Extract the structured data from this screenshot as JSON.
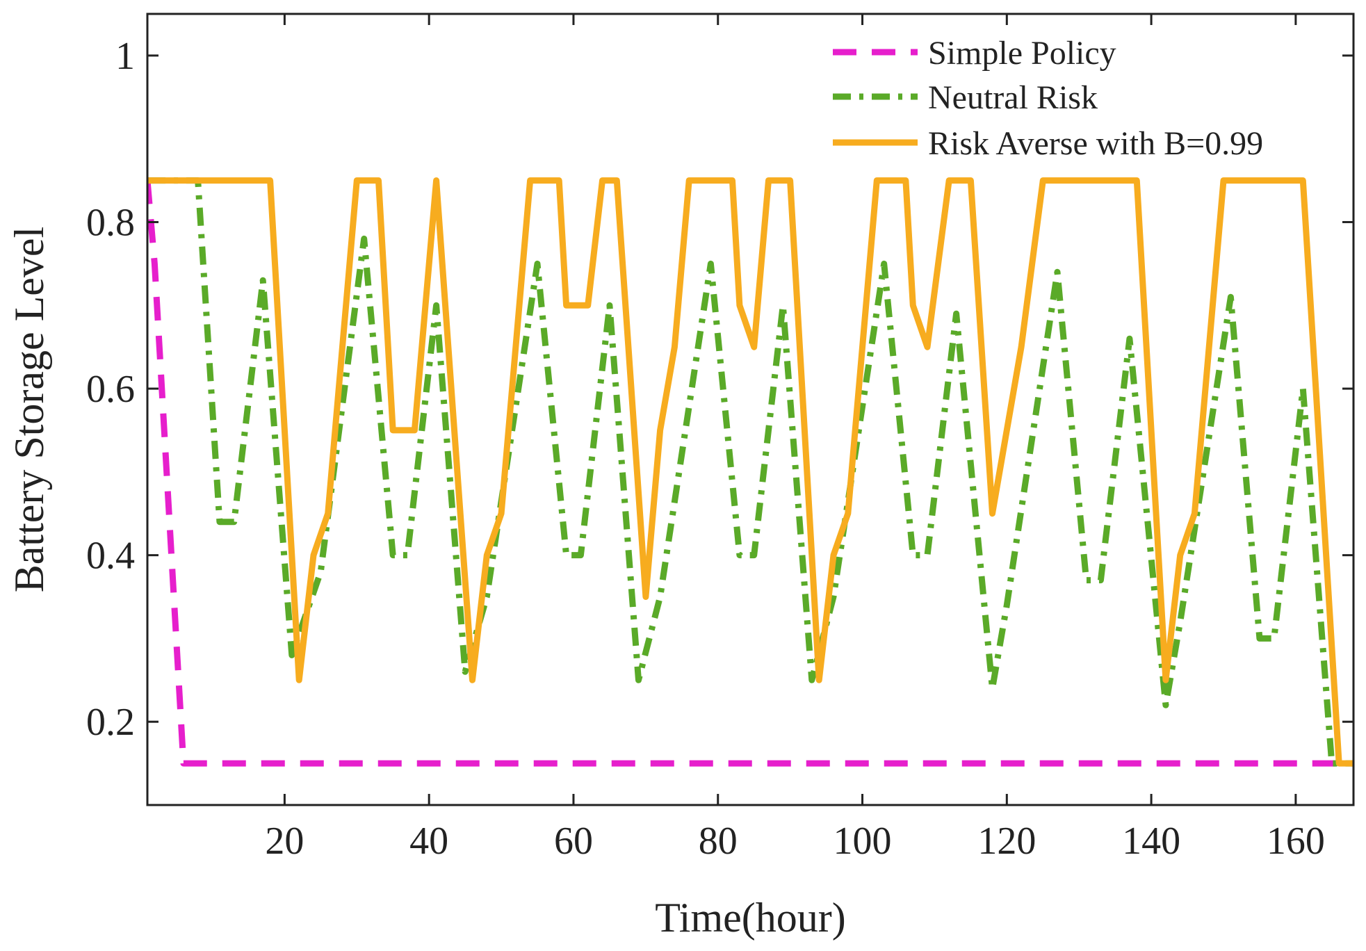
{
  "chart_data": {
    "type": "line",
    "title": "",
    "xlabel": "Time(hour)",
    "ylabel": "Battery Storage Level",
    "xlim": [
      1,
      168
    ],
    "ylim": [
      0.1,
      1.05
    ],
    "xticks": [
      20,
      40,
      60,
      80,
      100,
      120,
      140,
      160
    ],
    "yticks": [
      0.2,
      0.4,
      0.6,
      0.8,
      1
    ],
    "xtick_labels": [
      "20",
      "40",
      "60",
      "80",
      "100",
      "120",
      "140",
      "160"
    ],
    "ytick_labels": [
      "0.2",
      "0.4",
      "0.6",
      "0.8",
      "1"
    ],
    "grid": false,
    "legend_position": "top-right",
    "series": [
      {
        "name": "Simple Policy",
        "color": "#e61fcc",
        "style": "dashed",
        "points": [
          [
            1,
            0.85
          ],
          [
            2,
            0.75
          ],
          [
            6,
            0.15
          ],
          [
            168,
            0.15
          ]
        ]
      },
      {
        "name": "Neutral Risk",
        "color": "#5aaa28",
        "style": "dashdot",
        "points": [
          [
            1,
            0.85
          ],
          [
            8,
            0.85
          ],
          [
            11,
            0.44
          ],
          [
            13,
            0.44
          ],
          [
            17,
            0.73
          ],
          [
            21,
            0.28
          ],
          [
            25,
            0.38
          ],
          [
            31,
            0.78
          ],
          [
            35,
            0.4
          ],
          [
            37,
            0.4
          ],
          [
            41,
            0.7
          ],
          [
            45,
            0.26
          ],
          [
            48,
            0.35
          ],
          [
            55,
            0.75
          ],
          [
            59,
            0.4
          ],
          [
            61,
            0.4
          ],
          [
            65,
            0.7
          ],
          [
            69,
            0.25
          ],
          [
            72,
            0.35
          ],
          [
            79,
            0.75
          ],
          [
            83,
            0.4
          ],
          [
            85,
            0.4
          ],
          [
            89,
            0.7
          ],
          [
            93,
            0.25
          ],
          [
            96,
            0.35
          ],
          [
            103,
            0.75
          ],
          [
            107,
            0.4
          ],
          [
            109,
            0.4
          ],
          [
            113,
            0.69
          ],
          [
            118,
            0.24
          ],
          [
            120,
            0.34
          ],
          [
            127,
            0.74
          ],
          [
            131,
            0.37
          ],
          [
            133,
            0.37
          ],
          [
            137,
            0.66
          ],
          [
            142,
            0.22
          ],
          [
            144,
            0.32
          ],
          [
            151,
            0.71
          ],
          [
            155,
            0.3
          ],
          [
            157,
            0.3
          ],
          [
            161,
            0.6
          ],
          [
            165,
            0.15
          ],
          [
            168,
            0.15
          ]
        ]
      },
      {
        "name": "Risk Averse with B=0.99",
        "color": "#f7ac1f",
        "style": "solid",
        "points": [
          [
            1,
            0.85
          ],
          [
            18,
            0.85
          ],
          [
            22,
            0.25
          ],
          [
            24,
            0.4
          ],
          [
            26,
            0.45
          ],
          [
            30,
            0.85
          ],
          [
            33,
            0.85
          ],
          [
            35,
            0.55
          ],
          [
            38,
            0.55
          ],
          [
            41,
            0.85
          ],
          [
            46,
            0.25
          ],
          [
            48,
            0.4
          ],
          [
            50,
            0.45
          ],
          [
            54,
            0.85
          ],
          [
            58,
            0.85
          ],
          [
            59,
            0.7
          ],
          [
            62,
            0.7
          ],
          [
            64,
            0.85
          ],
          [
            66,
            0.85
          ],
          [
            70,
            0.35
          ],
          [
            72,
            0.55
          ],
          [
            74,
            0.65
          ],
          [
            76,
            0.85
          ],
          [
            82,
            0.85
          ],
          [
            83,
            0.7
          ],
          [
            85,
            0.65
          ],
          [
            87,
            0.85
          ],
          [
            90,
            0.85
          ],
          [
            94,
            0.25
          ],
          [
            96,
            0.4
          ],
          [
            98,
            0.45
          ],
          [
            102,
            0.85
          ],
          [
            106,
            0.85
          ],
          [
            107,
            0.7
          ],
          [
            109,
            0.65
          ],
          [
            112,
            0.85
          ],
          [
            115,
            0.85
          ],
          [
            118,
            0.45
          ],
          [
            120,
            0.55
          ],
          [
            122,
            0.65
          ],
          [
            125,
            0.85
          ],
          [
            138,
            0.85
          ],
          [
            142,
            0.25
          ],
          [
            144,
            0.4
          ],
          [
            146,
            0.45
          ],
          [
            150,
            0.85
          ],
          [
            161,
            0.85
          ],
          [
            166,
            0.15
          ],
          [
            168,
            0.15
          ]
        ]
      }
    ]
  }
}
